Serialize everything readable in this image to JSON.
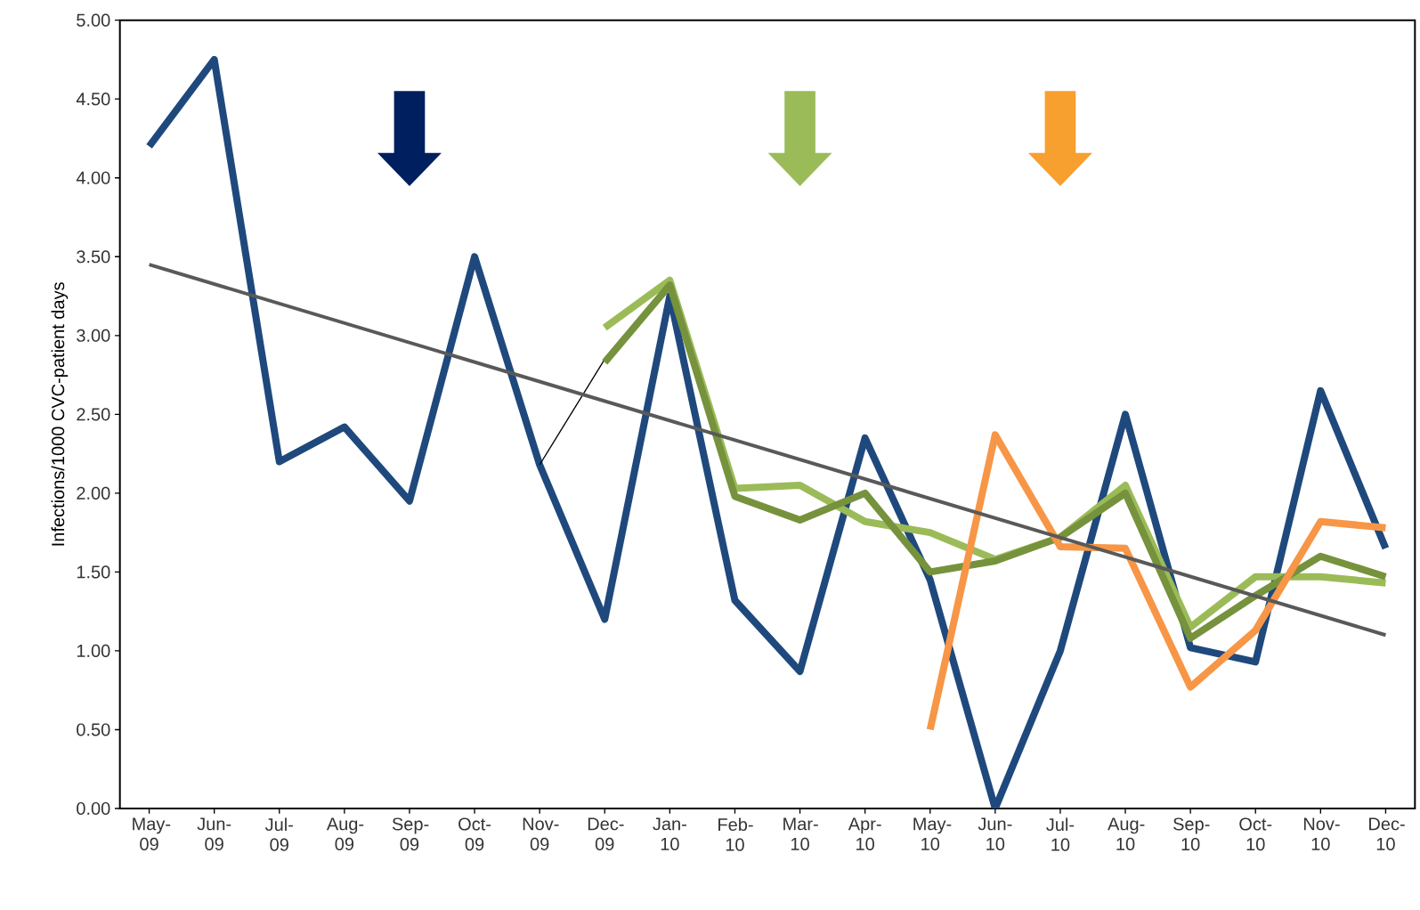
{
  "chart_data": {
    "type": "line",
    "ylabel": "Infections/1000 CVC-patient days",
    "categories": [
      "May-09",
      "Jun-09",
      "Jul-09",
      "Aug-09",
      "Sep-09",
      "Oct-09",
      "Nov-09",
      "Dec-09",
      "Jan-10",
      "Feb-10",
      "Mar-10",
      "Apr-10",
      "May-10",
      "Jun-10",
      "Jul-10",
      "Aug-10",
      "Sep-10",
      "Oct-10",
      "Nov-10",
      "Dec-10"
    ],
    "series": [
      {
        "color": "#1f497d",
        "values": [
          4.2,
          4.75,
          2.2,
          2.42,
          1.95,
          3.5,
          2.18,
          1.2,
          3.25,
          1.32,
          0.87,
          2.35,
          1.45,
          0.0,
          1.0,
          2.5,
          1.02,
          0.93,
          2.65,
          1.65
        ]
      },
      {
        "color": "#000000",
        "values": [
          null,
          null,
          null,
          null,
          null,
          null,
          2.18,
          2.85,
          null,
          null,
          null,
          null,
          null,
          null,
          null,
          null,
          null,
          null,
          null,
          null
        ]
      },
      {
        "color": "#9bbb59",
        "values": [
          null,
          null,
          null,
          null,
          null,
          null,
          null,
          3.05,
          3.35,
          2.03,
          2.05,
          1.82,
          1.75,
          1.58,
          1.72,
          2.05,
          1.15,
          1.47,
          1.47,
          1.43
        ]
      },
      {
        "color": "#76923c",
        "values": [
          null,
          null,
          null,
          null,
          null,
          null,
          null,
          2.83,
          3.32,
          1.98,
          1.83,
          2.0,
          1.5,
          1.57,
          1.72,
          2.0,
          1.08,
          1.35,
          1.6,
          1.47
        ]
      },
      {
        "color": "#f79646",
        "values": [
          null,
          null,
          null,
          null,
          null,
          null,
          null,
          null,
          null,
          null,
          null,
          null,
          0.5,
          2.37,
          1.66,
          1.65,
          0.77,
          1.13,
          1.82,
          1.78
        ]
      },
      {
        "color": "#595959",
        "values": [
          3.45,
          null,
          null,
          null,
          null,
          null,
          null,
          null,
          null,
          null,
          null,
          null,
          null,
          null,
          null,
          null,
          null,
          null,
          null,
          1.1
        ]
      }
    ],
    "ylim": [
      0,
      5
    ],
    "yticks": [
      {
        "value": 0,
        "label": "0.00"
      },
      {
        "value": 0.5,
        "label": "0.50"
      },
      {
        "value": 1,
        "label": "1.00"
      },
      {
        "value": 1.5,
        "label": "1.50"
      },
      {
        "value": 2,
        "label": "2.00"
      },
      {
        "value": 2.5,
        "label": "2.50"
      },
      {
        "value": 3,
        "label": "3.00"
      },
      {
        "value": 3.5,
        "label": "3.50"
      },
      {
        "value": 4,
        "label": "4.00"
      },
      {
        "value": 4.5,
        "label": "4.50"
      },
      {
        "value": 5,
        "label": "5.00"
      }
    ],
    "grid": false,
    "marker": "none",
    "line_style": "solid"
  }
}
